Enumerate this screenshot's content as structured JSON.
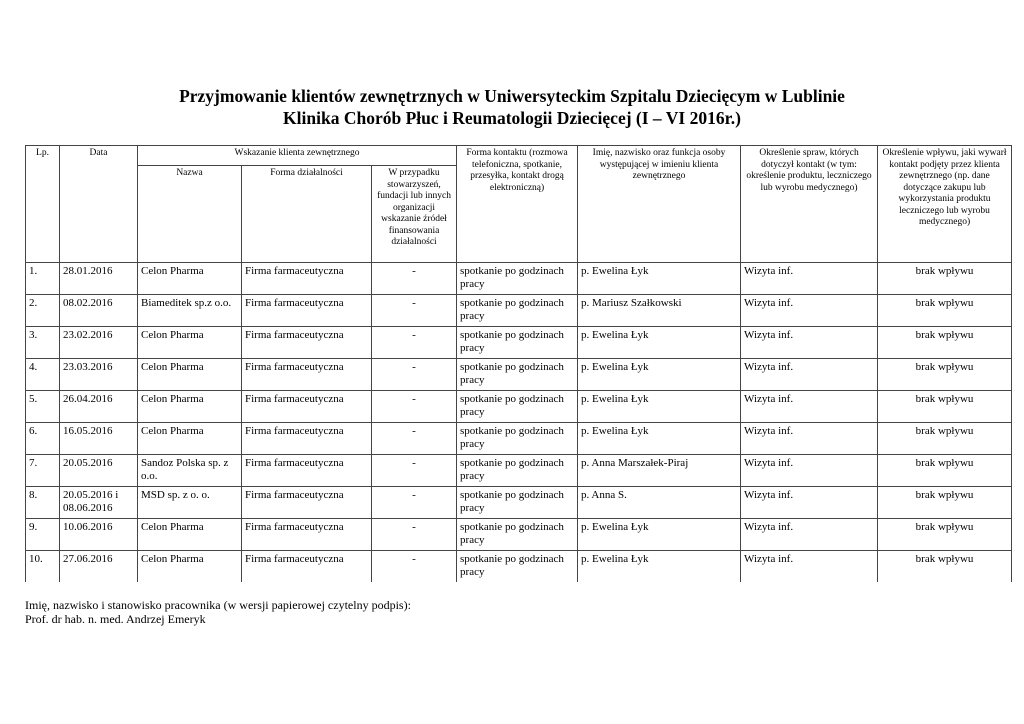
{
  "title_line1": "Przyjmowanie klientów zewnętrznych w Uniwersyteckim Szpitalu Dziecięcym w Lublinie",
  "title_line2": "Klinika Chorób Płuc i Reumatologii Dziecięcej  (I – VI 2016r.)",
  "headers": {
    "lp": "Lp.",
    "data": "Data",
    "wskazanie": "Wskazanie klienta zewnętrznego",
    "nazwa": "Nazwa",
    "forma_dzialalnosci": "Forma działalności",
    "w_przypadku": "W przypadku stowarzyszeń, fundacji lub innych organizacji wskazanie źródeł finansowania działalności",
    "forma_kontaktu": "Forma kontaktu (rozmowa telefoniczna, spotkanie, przesyłka, kontakt drogą elektroniczną)",
    "osoba": "Imię, nazwisko oraz funkcja osoby występującej w imieniu klienta zewnętrznego",
    "sprawy": "Określenie spraw, których dotyczył kontakt (w tym: określenie produktu, leczniczego lub wyrobu medycznego)",
    "wplyw": "Określenie wpływu, jaki wywarł kontakt podjęty przez klienta zewnętrznego (np. dane dotyczące zakupu lub wykorzystania produktu leczniczego lub wyrobu medycznego)"
  },
  "rows": [
    [
      "1.",
      "28.01.2016",
      "Celon Pharma",
      "Firma farmaceutyczna",
      "-",
      "spotkanie po godzinach pracy",
      "p. Ewelina Łyk",
      "Wizyta inf.",
      "brak wpływu"
    ],
    [
      "2.",
      "08.02.2016",
      "Biameditek sp.z o.o.",
      "Firma farmaceutyczna",
      "-",
      "spotkanie po godzinach pracy",
      "p. Mariusz Szałkowski",
      "Wizyta inf.",
      "brak wpływu"
    ],
    [
      "3.",
      "23.02.2016",
      "Celon Pharma",
      "Firma farmaceutyczna",
      "-",
      "spotkanie po godzinach pracy",
      "p. Ewelina Łyk",
      "Wizyta inf.",
      "brak wpływu"
    ],
    [
      "4.",
      "23.03.2016",
      "Celon Pharma",
      "Firma farmaceutyczna",
      "-",
      "spotkanie po godzinach pracy",
      "p. Ewelina Łyk",
      "Wizyta inf.",
      "brak wpływu"
    ],
    [
      "5.",
      "26.04.2016",
      "Celon Pharma",
      "Firma farmaceutyczna",
      "-",
      "spotkanie po godzinach pracy",
      "p. Ewelina Łyk",
      "Wizyta inf.",
      "brak wpływu"
    ],
    [
      "6.",
      "16.05.2016",
      "Celon Pharma",
      "Firma farmaceutyczna",
      "-",
      "spotkanie po godzinach pracy",
      "p. Ewelina Łyk",
      "Wizyta inf.",
      "brak wpływu"
    ],
    [
      "7.",
      "20.05.2016",
      "Sandoz Polska sp. z o.o.",
      "Firma farmaceutyczna",
      "-",
      "spotkanie po godzinach pracy",
      "p. Anna Marszałek-Piraj",
      "Wizyta inf.",
      "brak wpływu"
    ],
    [
      "8.",
      "20.05.2016 i 08.06.2016",
      "MSD sp. z o. o.",
      "Firma farmaceutyczna",
      "-",
      "spotkanie po godzinach pracy",
      "p. Anna S.",
      "Wizyta inf.",
      "brak wpływu"
    ],
    [
      "9.",
      "10.06.2016",
      "Celon Pharma",
      "Firma farmaceutyczna",
      "-",
      "spotkanie po godzinach pracy",
      "p. Ewelina Łyk",
      "Wizyta inf.",
      "brak wpływu"
    ],
    [
      "10.",
      "27.06.2016",
      "Celon Pharma",
      "Firma farmaceutyczna",
      "-",
      "spotkanie po godzinach pracy",
      "p. Ewelina Łyk",
      "Wizyta inf.",
      "brak wpływu"
    ]
  ],
  "footer_line1": "Imię, nazwisko i stanowisko pracownika (w wersji papierowej czytelny podpis):",
  "footer_line2": "Prof. dr hab. n. med. Andrzej Emeryk"
}
